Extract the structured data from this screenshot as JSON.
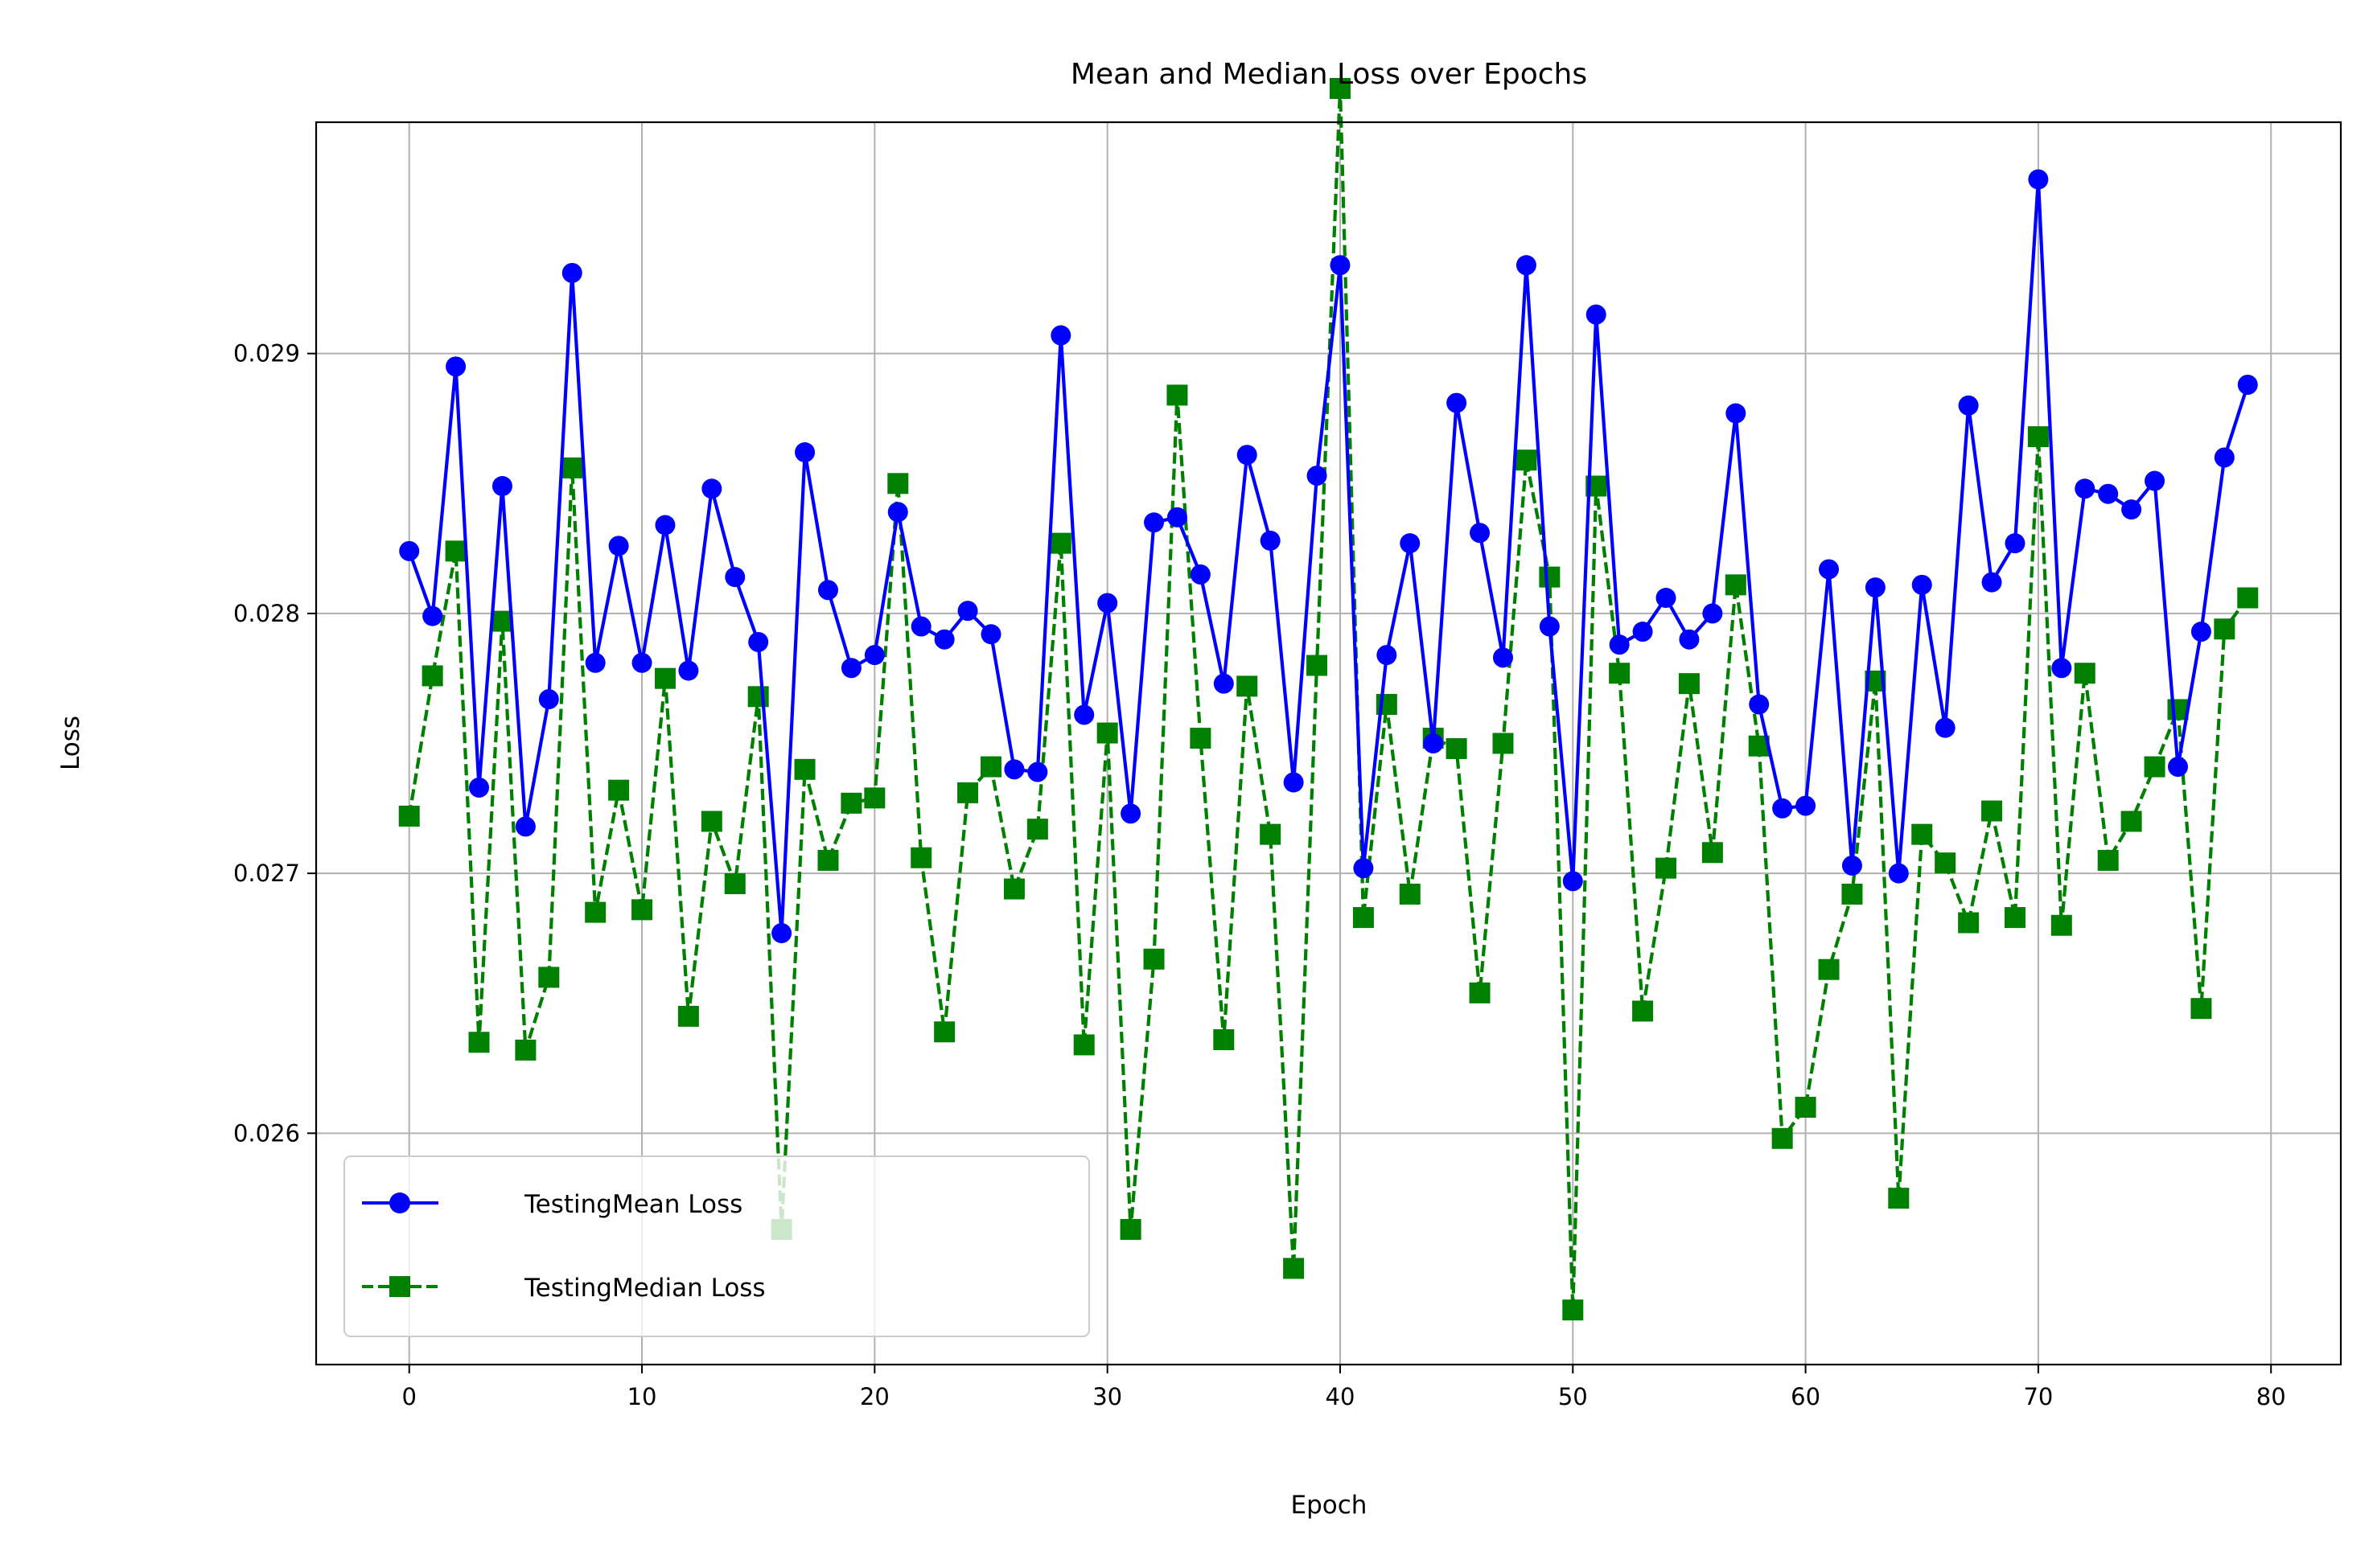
{
  "chart_data": {
    "type": "line",
    "title": "Mean and Median Loss over Epochs",
    "xlabel": "Epoch",
    "ylabel": "Loss",
    "xlim": [
      -4,
      83
    ],
    "ylim": [
      0.02511,
      0.02989
    ],
    "xticks": [
      0,
      10,
      20,
      30,
      40,
      50,
      60,
      70,
      80
    ],
    "yticks": [
      0.026,
      0.027,
      0.028,
      0.029
    ],
    "xtick_labels": [
      "0",
      "10",
      "20",
      "30",
      "40",
      "50",
      "60",
      "70",
      "80"
    ],
    "ytick_labels": [
      "0.026",
      "0.027",
      "0.028",
      "0.029"
    ],
    "grid": true,
    "legend_position": "lower-left",
    "x": [
      0,
      1,
      2,
      3,
      4,
      5,
      6,
      7,
      8,
      9,
      10,
      11,
      12,
      13,
      14,
      15,
      16,
      17,
      18,
      19,
      20,
      21,
      22,
      23,
      24,
      25,
      26,
      27,
      28,
      29,
      30,
      31,
      32,
      33,
      34,
      35,
      36,
      37,
      38,
      39,
      40,
      41,
      42,
      43,
      44,
      45,
      46,
      47,
      48,
      49,
      50,
      51,
      52,
      53,
      54,
      55,
      56,
      57,
      58,
      59,
      60,
      61,
      62,
      63,
      64,
      65,
      66,
      67,
      68,
      69,
      70,
      71,
      72,
      73,
      74,
      75,
      76,
      77,
      78,
      79
    ],
    "series": [
      {
        "name": "TestingMean Loss",
        "color": "#0000ff",
        "marker": "circle",
        "linestyle": "solid",
        "values": [
          0.02824,
          0.02799,
          0.02895,
          0.02733,
          0.02849,
          0.02718,
          0.02767,
          0.02931,
          0.02781,
          0.02826,
          0.02781,
          0.02834,
          0.02778,
          0.02848,
          0.02814,
          0.02789,
          0.02677,
          0.02862,
          0.02809,
          0.02779,
          0.02784,
          0.02839,
          0.02795,
          0.0279,
          0.02801,
          0.02792,
          0.0274,
          0.02739,
          0.02907,
          0.02761,
          0.02804,
          0.02723,
          0.02835,
          0.02837,
          0.02815,
          0.02773,
          0.02861,
          0.02828,
          0.02735,
          0.02853,
          0.02934,
          0.02702,
          0.02784,
          0.02827,
          0.0275,
          0.02881,
          0.02831,
          0.02783,
          0.02934,
          0.02795,
          0.02697,
          0.02915,
          0.02788,
          0.02793,
          0.02806,
          0.0279,
          0.028,
          0.02877,
          0.02765,
          0.02725,
          0.02726,
          0.02817,
          0.02703,
          0.0281,
          0.027,
          0.02811,
          0.02756,
          0.0288,
          0.02812,
          0.02827,
          0.02967,
          0.02779,
          0.02848,
          0.02846,
          0.0284,
          0.02851,
          0.02741,
          0.02793,
          0.0286,
          0.02888
        ]
      },
      {
        "name": "TestingMedian Loss",
        "color": "#008000",
        "marker": "square",
        "linestyle": "dashed",
        "values": [
          0.02722,
          0.02776,
          0.02824,
          0.02635,
          0.02797,
          0.02632,
          0.0266,
          0.02856,
          0.02685,
          0.02732,
          0.02686,
          0.02775,
          0.02645,
          0.0272,
          0.02696,
          0.02768,
          0.02563,
          0.0274,
          0.02705,
          0.02727,
          0.02729,
          0.0285,
          0.02706,
          0.02639,
          0.02731,
          0.02741,
          0.02694,
          0.02717,
          0.02827,
          0.02634,
          0.02754,
          0.02563,
          0.02667,
          0.02884,
          0.02752,
          0.02636,
          0.02772,
          0.02715,
          0.02548,
          0.0278,
          0.03002,
          0.02683,
          0.02765,
          0.02692,
          0.02752,
          0.02748,
          0.02654,
          0.0275,
          0.02859,
          0.02814,
          0.02532,
          0.02849,
          0.02777,
          0.02647,
          0.02702,
          0.02773,
          0.02708,
          0.02811,
          0.02749,
          0.02598,
          0.0261,
          0.02663,
          0.02692,
          0.02774,
          0.02575,
          0.02715,
          0.02704,
          0.02681,
          0.02724,
          0.02683,
          0.02868,
          0.0268,
          0.02777,
          0.02705,
          0.0272,
          0.02741,
          0.02763,
          0.02648,
          0.02794,
          0.02806
        ]
      }
    ]
  }
}
